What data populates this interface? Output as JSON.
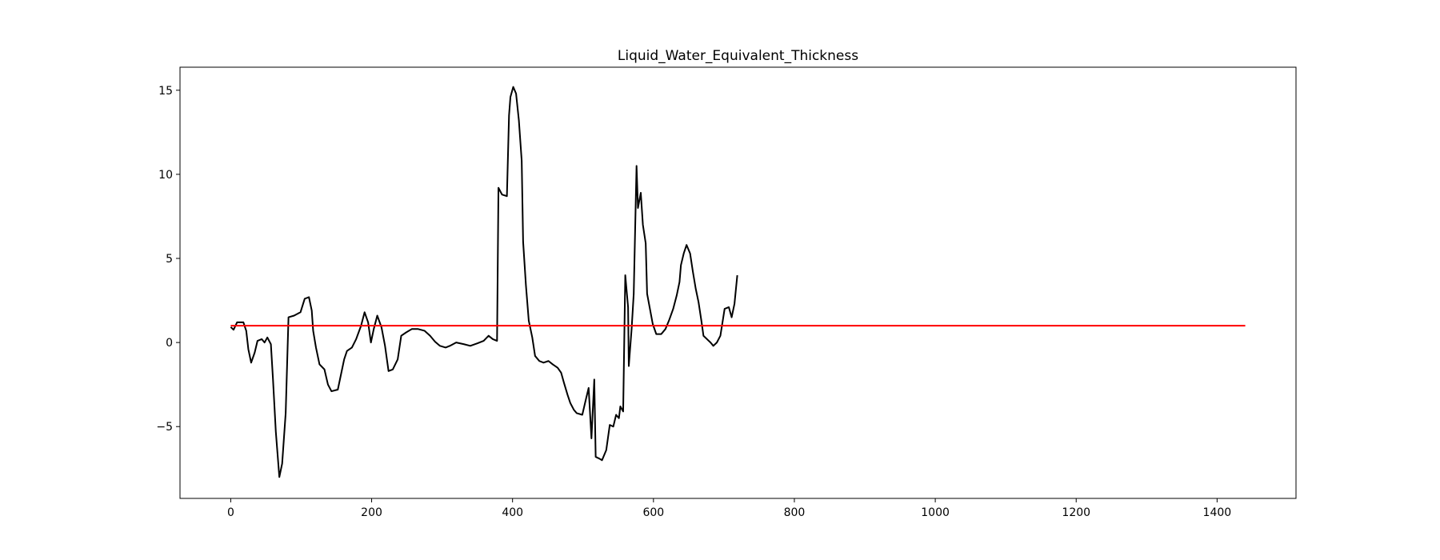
{
  "chart_data": {
    "type": "line",
    "title": "Liquid_Water_Equivalent_Thickness",
    "xlim": [
      -72,
      1512
    ],
    "ylim": [
      -9.27,
      16.37
    ],
    "xticks": [
      0,
      200,
      400,
      600,
      800,
      1000,
      1200,
      1400
    ],
    "yticks": [
      {
        "value": -5,
        "label": "−5"
      },
      0,
      5,
      10,
      15
    ],
    "series": [
      {
        "color": "#000000",
        "x": [
          0,
          4,
          9,
          18,
          22,
          25,
          29,
          34,
          38,
          44,
          48,
          52,
          57,
          60,
          64,
          69,
          73,
          78,
          82,
          90,
          99,
          105,
          111,
          115,
          117,
          121,
          126,
          133,
          138,
          143,
          152,
          158,
          161,
          165,
          172,
          178,
          185,
          190,
          195,
          199,
          203,
          208,
          214,
          219,
          224,
          230,
          237,
          242,
          249,
          257,
          266,
          275,
          283,
          290,
          297,
          305,
          311,
          320,
          331,
          340,
          350,
          359,
          366,
          372,
          378,
          380,
          385,
          392,
          395,
          397,
          401,
          405,
          409,
          413,
          415,
          419,
          423,
          428,
          432,
          438,
          444,
          451,
          457,
          464,
          469,
          473,
          478,
          482,
          487,
          491,
          499,
          504,
          508,
          512,
          516,
          518,
          523,
          527,
          533,
          538,
          543,
          547,
          551,
          553,
          557,
          560,
          564,
          565,
          569,
          572,
          576,
          578,
          582,
          585,
          589,
          591,
          595,
          599,
          604,
          611,
          617,
          622,
          628,
          633,
          637,
          639,
          643,
          647,
          652,
          656,
          660,
          664,
          668,
          671,
          676,
          681,
          685,
          690,
          695,
          701,
          707,
          711,
          715,
          719
        ],
        "values": [
          0.92,
          0.76,
          1.2,
          1.2,
          0.7,
          -0.4,
          -1.2,
          -0.6,
          0.1,
          0.2,
          0,
          0.3,
          -0.1,
          -2.2,
          -5.3,
          -8.0,
          -7.2,
          -4.2,
          1.5,
          1.6,
          1.8,
          2.6,
          2.7,
          1.9,
          0.7,
          -0.3,
          -1.3,
          -1.6,
          -2.5,
          -2.9,
          -2.8,
          -1.6,
          -1.0,
          -0.5,
          -0.3,
          0.2,
          1.0,
          1.8,
          1.2,
          0,
          0.8,
          1.6,
          0.9,
          -0.2,
          -1.7,
          -1.6,
          -1.0,
          0.4,
          0.6,
          0.8,
          0.8,
          0.7,
          0.4,
          0.05,
          -0.2,
          -0.3,
          -0.2,
          0,
          -0.1,
          -0.2,
          -0.05,
          0.1,
          0.4,
          0.2,
          0.1,
          9.2,
          8.8,
          8.7,
          13.5,
          14.6,
          15.2,
          14.8,
          13.2,
          10.8,
          6.0,
          3.4,
          1.3,
          0.3,
          -0.8,
          -1.1,
          -1.2,
          -1.1,
          -1.3,
          -1.5,
          -1.8,
          -2.4,
          -3.1,
          -3.6,
          -4.0,
          -4.2,
          -4.3,
          -3.4,
          -2.7,
          -5.7,
          -2.2,
          -6.8,
          -6.9,
          -7.0,
          -6.4,
          -4.9,
          -5.0,
          -4.3,
          -4.5,
          -3.8,
          -4.1,
          4.0,
          2.1,
          -1.4,
          0.8,
          2.9,
          10.5,
          8.0,
          8.9,
          7.0,
          5.9,
          2.9,
          2.0,
          1.1,
          0.5,
          0.5,
          0.8,
          1.3,
          2.0,
          2.8,
          3.6,
          4.6,
          5.3,
          5.8,
          5.3,
          4.2,
          3.2,
          2.4,
          1.3,
          0.4,
          0.2,
          0,
          -0.2,
          0,
          0.4,
          2.0,
          2.1,
          1.5,
          2.3,
          4.0
        ]
      },
      {
        "color": "#ff0000",
        "x": [
          0,
          1440
        ],
        "values": [
          1,
          1
        ]
      }
    ]
  }
}
